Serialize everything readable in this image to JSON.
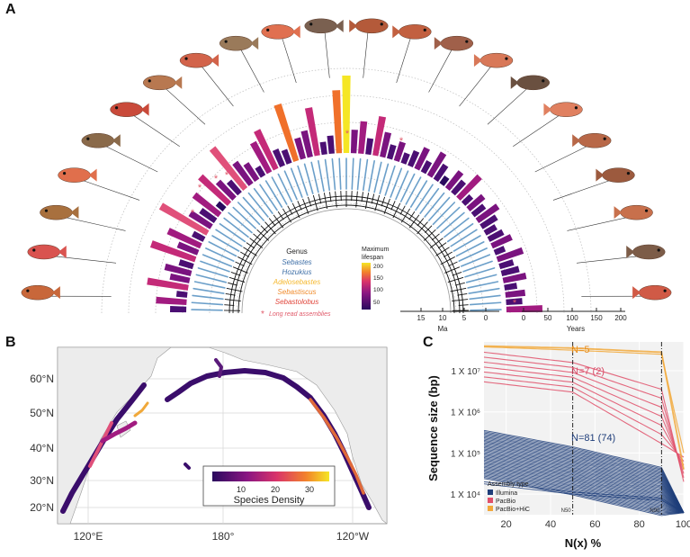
{
  "panel_a": {
    "letter": "A",
    "legend": {
      "genus_title": "Genus",
      "genera": [
        {
          "name": "Sebastes",
          "color": "#3d6ea6"
        },
        {
          "name": "Hozukius",
          "color": "#3d6ea6"
        },
        {
          "name": "Adelosebastes",
          "color": "#f5b82e"
        },
        {
          "name": "Sebastiscus",
          "color": "#f08a2a"
        },
        {
          "name": "Sebastolobus",
          "color": "#e0453a"
        }
      ],
      "lifespan_title_1": "Maximum",
      "lifespan_title_2": "lifespan",
      "lifespan_ticks": [
        "200",
        "150",
        "100",
        "50"
      ],
      "long_read_mark": "*",
      "long_read_label": "Long read assemblies"
    },
    "time_axis": {
      "label": "Ma",
      "ticks": [
        "15",
        "10",
        "5",
        "0"
      ]
    },
    "years_axis": {
      "label": "Years",
      "ticks": [
        "0",
        "50",
        "100",
        "150",
        "200"
      ]
    },
    "colors": {
      "low": "#2a0a5e",
      "mid": "#b0177a",
      "high": "#f0702a",
      "max": "#f5e625",
      "tip_label": "#3a7fb8",
      "star": "#e05a6a"
    }
  },
  "panel_b": {
    "letter": "B",
    "lat_ticks": [
      "60°N",
      "50°N",
      "40°N",
      "30°N",
      "20°N"
    ],
    "lon_ticks": [
      "120°E",
      "180°",
      "120°W"
    ],
    "colorbar_ticks": [
      "10",
      "20",
      "30"
    ],
    "colorbar_label": "Species Density"
  },
  "panel_c": {
    "letter": "C",
    "chart_data": {
      "type": "line",
      "xlabel": "N(x) %",
      "ylabel": "Sequence size (bp)",
      "xticks": [
        "20",
        "40",
        "60",
        "80",
        "100"
      ],
      "yticks": [
        "1 X 10⁷",
        "1 X 10⁶",
        "1 X 10⁵",
        "1 X 10⁴"
      ],
      "xlim": [
        10,
        100
      ],
      "ylim_log10": [
        3.5,
        7.7
      ],
      "vlines": [
        {
          "x": 50,
          "label": "N50"
        },
        {
          "x": 90,
          "label": "N90"
        }
      ],
      "legend_title": "Assembly type",
      "series": [
        {
          "name": "Illumina",
          "color": "#1f3e7a",
          "annotation": "N=81 (74)"
        },
        {
          "name": "PacBio",
          "color": "#e0506a",
          "annotation": "N=7 (2)"
        },
        {
          "name": "PacBio+HiC",
          "color": "#f2a93b",
          "annotation": "N=5"
        }
      ]
    }
  }
}
